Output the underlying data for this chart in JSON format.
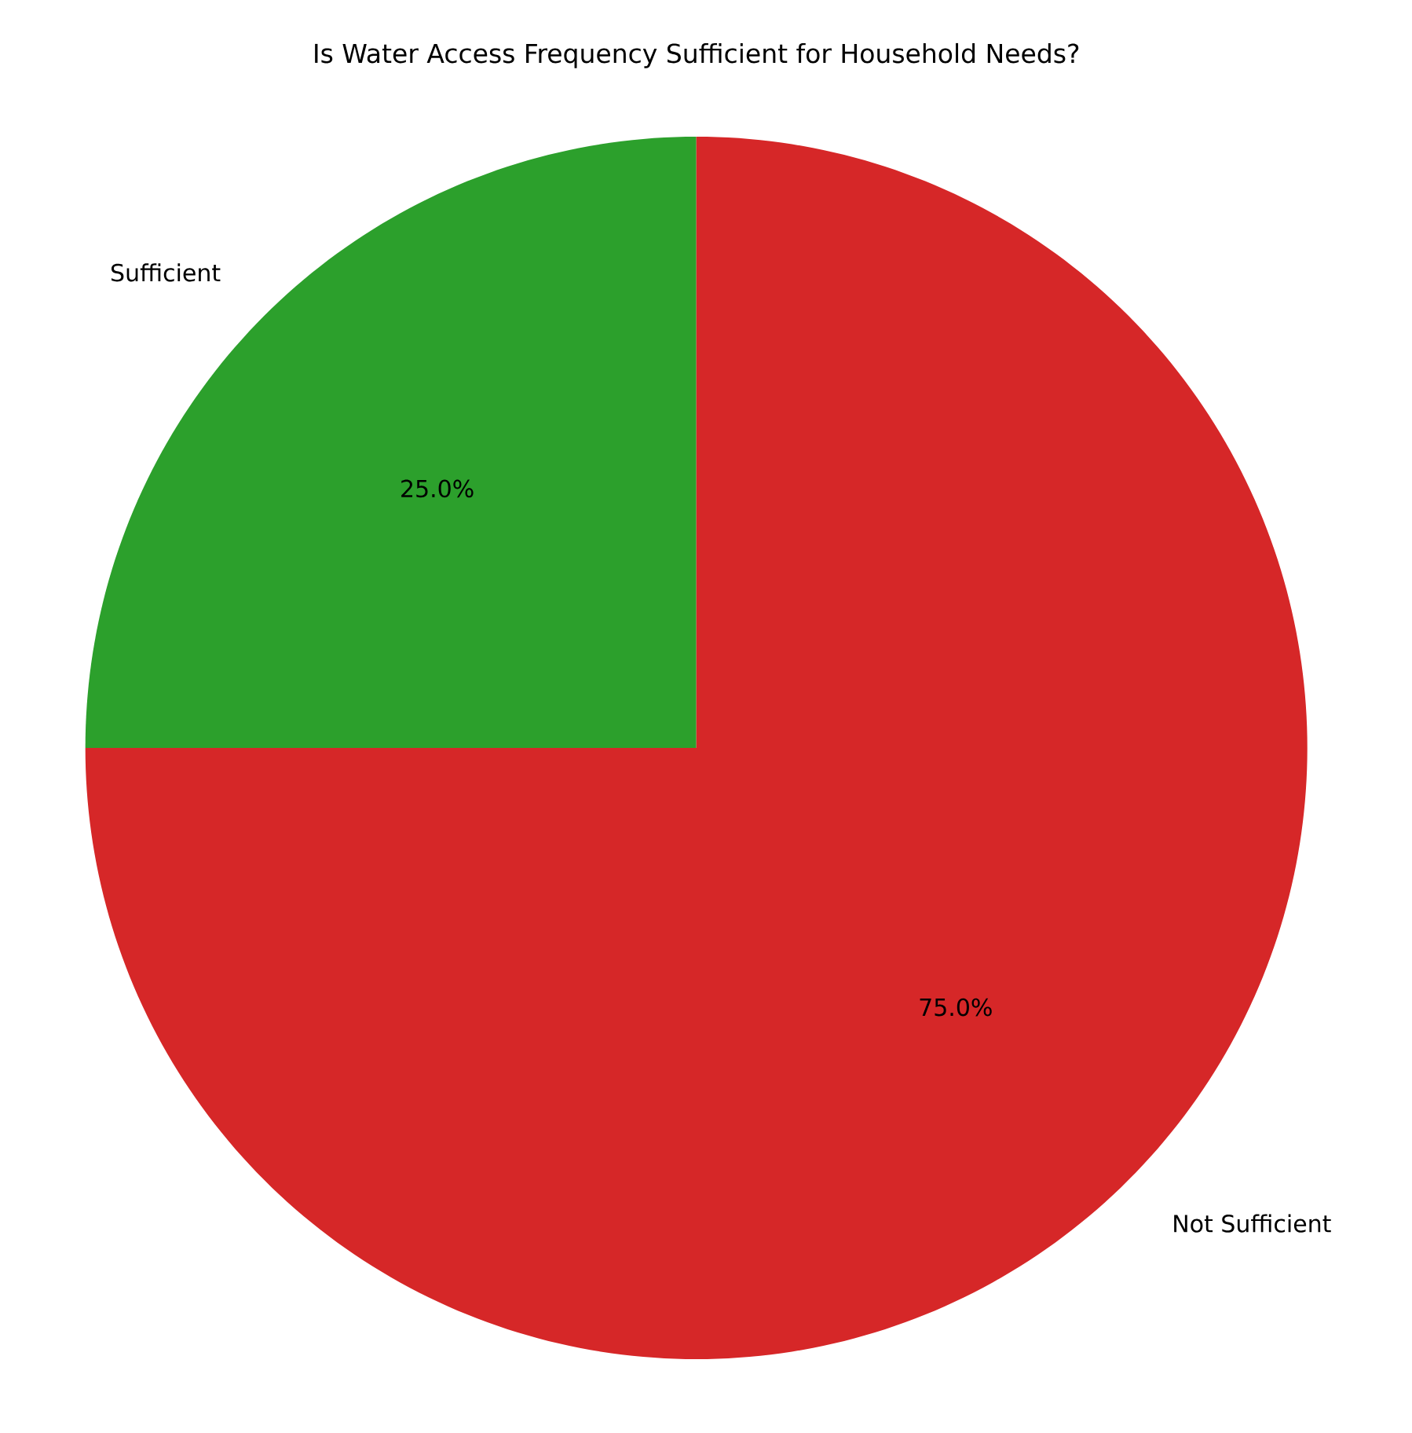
{
  "chart_data": {
    "type": "pie",
    "title": "Is Water Access Frequency Sufficient for Household Needs?",
    "categories": [
      "Sufficient",
      "Not Sufficient"
    ],
    "values": [
      25,
      75
    ],
    "colors": [
      "#2ca02c",
      "#d62728"
    ],
    "value_labels": [
      "25.0%",
      "75.0%"
    ]
  }
}
